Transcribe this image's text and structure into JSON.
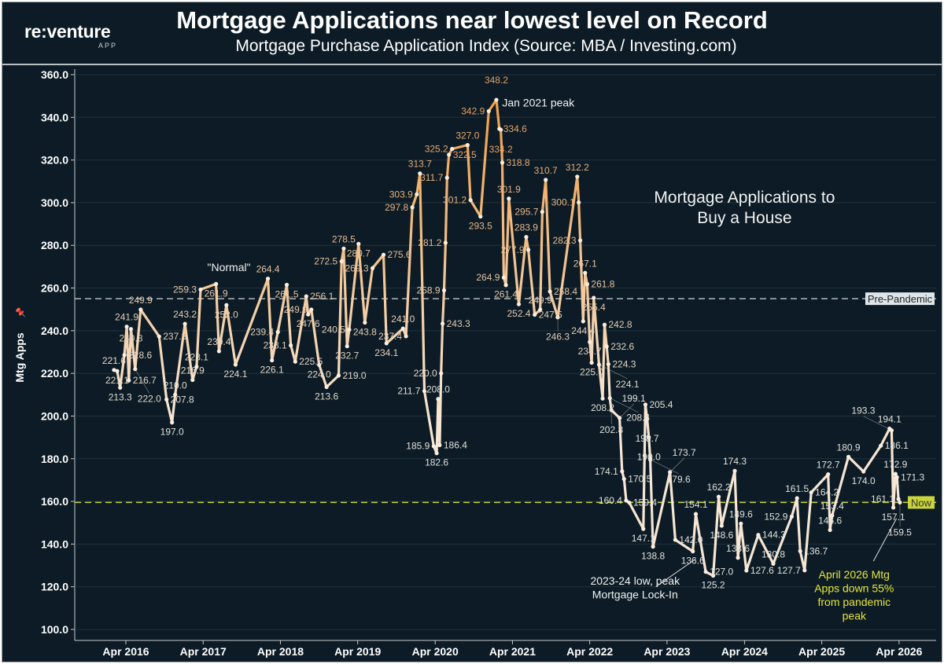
{
  "header": {
    "logo": "re:venture",
    "logo_sub": "APP",
    "title": "Mortgage Applications near lowest level on Record",
    "subtitle": "Mortgage Purchase Application Index (Source: MBA / Investing.com)"
  },
  "colors": {
    "background": "#0c1b25",
    "line_high": "#f0a14f",
    "line_low": "#f6e6d3",
    "now_line": "#c8d43a",
    "pre_pandemic_line": "#b0b8bc"
  },
  "chart_data": {
    "type": "line",
    "title": "Mortgage Applications near lowest level on Record",
    "subtitle": "Mortgage Purchase Application Index (Source: MBA / Investing.com)",
    "ylabel": "Mtg Apps",
    "ylabel_icon": "pin-icon",
    "ylim": [
      100,
      360
    ],
    "yticks": [
      "100.0",
      "120.0",
      "140.0",
      "160.0",
      "180.0",
      "200.0",
      "220.0",
      "240.0",
      "260.0",
      "280.0",
      "300.0",
      "320.0",
      "340.0",
      "360.0"
    ],
    "xticks": [
      {
        "date": "2016-04-01",
        "label": "Apr 2016"
      },
      {
        "date": "2017-04-01",
        "label": "Apr 2017"
      },
      {
        "date": "2018-04-01",
        "label": "Apr 2018"
      },
      {
        "date": "2019-04-01",
        "label": "Apr 2019"
      },
      {
        "date": "2020-04-01",
        "label": "Apr 2020"
      },
      {
        "date": "2021-04-01",
        "label": "Apr 2021"
      },
      {
        "date": "2022-04-01",
        "label": "Apr 2022"
      },
      {
        "date": "2023-04-01",
        "label": "Apr 2023"
      },
      {
        "date": "2024-04-01",
        "label": "Apr 2024"
      },
      {
        "date": "2025-04-01",
        "label": "Apr 2025"
      },
      {
        "date": "2026-04-01",
        "label": "Apr 2026"
      }
    ],
    "grid": true,
    "reference_lines": [
      {
        "label": "Pre-Pandemic",
        "value": 255,
        "style": "dashed"
      },
      {
        "label": "Now",
        "value": 159.5,
        "style": "dashed"
      }
    ],
    "annotations": [
      {
        "text": "\"Normal\"",
        "date": "2017-08-01",
        "value": 268
      },
      {
        "text": "Jan 2021 peak",
        "date": "2021-08-01",
        "value": 345
      },
      {
        "text": "Mortgage Applications to",
        "date": "2024-04-01",
        "value": 300
      },
      {
        "text": "Buy a House",
        "date": "2024-04-01",
        "value": 292
      },
      {
        "text": "2023-24 low, peak",
        "date": "2022-11-01",
        "value": 121
      },
      {
        "text": "Mortgage Lock-In",
        "date": "2022-11-01",
        "value": 115
      },
      {
        "text": "April 2026 Mtg",
        "date": "2025-09-01",
        "value": 124
      },
      {
        "text": "Apps down 55%",
        "date": "2025-09-01",
        "value": 118
      },
      {
        "text": "from pandemic",
        "date": "2025-09-01",
        "value": 112
      },
      {
        "text": "peak",
        "date": "2025-09-01",
        "value": 106
      }
    ],
    "series": [
      {
        "points": [
          [
            "2016-02-05",
            221.6
          ],
          [
            "2016-02-20",
            221.1
          ],
          [
            "2016-03-05",
            213.3
          ],
          [
            "2016-03-25",
            228.6
          ],
          [
            "2016-04-05",
            241.9
          ],
          [
            "2016-04-15",
            216.7
          ],
          [
            "2016-04-25",
            240.8
          ],
          [
            "2016-05-15",
            222.0
          ],
          [
            "2016-06-10",
            249.9
          ],
          [
            "2016-09-05",
            237.3
          ],
          [
            "2016-10-10",
            207.8
          ],
          [
            "2016-11-05",
            197.0
          ],
          [
            "2016-11-20",
            210.0
          ],
          [
            "2017-01-05",
            243.2
          ],
          [
            "2017-02-10",
            216.9
          ],
          [
            "2017-03-01",
            223.1
          ],
          [
            "2017-03-20",
            259.3
          ],
          [
            "2017-06-01",
            261.9
          ],
          [
            "2017-06-15",
            230.4
          ],
          [
            "2017-07-20",
            252.0
          ],
          [
            "2017-09-01",
            224.1
          ],
          [
            "2018-02-01",
            264.4
          ],
          [
            "2018-02-20",
            226.1
          ],
          [
            "2018-03-20",
            239.4
          ],
          [
            "2018-05-01",
            261.5
          ],
          [
            "2018-05-20",
            233.1
          ],
          [
            "2018-06-10",
            225.5
          ],
          [
            "2018-08-01",
            256.1
          ],
          [
            "2018-08-10",
            247.6
          ],
          [
            "2018-08-25",
            249.9
          ],
          [
            "2018-10-01",
            224.0
          ],
          [
            "2018-11-05",
            213.6
          ],
          [
            "2019-01-01",
            219.0
          ],
          [
            "2019-01-15",
            272.5
          ],
          [
            "2019-01-25",
            278.5
          ],
          [
            "2019-02-10",
            232.7
          ],
          [
            "2019-02-20",
            240.5
          ],
          [
            "2019-04-05",
            280.7
          ],
          [
            "2019-05-05",
            243.8
          ],
          [
            "2019-06-10",
            269.3
          ],
          [
            "2019-08-01",
            275.6
          ],
          [
            "2019-08-15",
            234.1
          ],
          [
            "2019-11-01",
            241.0
          ],
          [
            "2019-11-15",
            237.4
          ],
          [
            "2019-12-15",
            297.8
          ],
          [
            "2020-01-05",
            303.9
          ],
          [
            "2020-01-20",
            313.7
          ],
          [
            "2020-02-10",
            211.7
          ],
          [
            "2020-03-25",
            185.9
          ],
          [
            "2020-04-08",
            182.6
          ],
          [
            "2020-04-15",
            208.0
          ],
          [
            "2020-04-22",
            186.4
          ],
          [
            "2020-04-29",
            220.0
          ],
          [
            "2020-05-06",
            243.3
          ],
          [
            "2020-05-13",
            258.9
          ],
          [
            "2020-05-20",
            281.2
          ],
          [
            "2020-05-27",
            311.7
          ],
          [
            "2020-06-05",
            322.5
          ],
          [
            "2020-06-20",
            325.2
          ],
          [
            "2020-09-01",
            327.0
          ],
          [
            "2020-09-15",
            301.2
          ],
          [
            "2020-11-01",
            293.5
          ],
          [
            "2020-12-10",
            342.9
          ],
          [
            "2021-01-15",
            348.2
          ],
          [
            "2021-01-29",
            334.6
          ],
          [
            "2021-02-05",
            334.2
          ],
          [
            "2021-02-12",
            318.8
          ],
          [
            "2021-02-19",
            264.9
          ],
          [
            "2021-03-01",
            261.4
          ],
          [
            "2021-03-15",
            301.9
          ],
          [
            "2021-05-01",
            252.4
          ],
          [
            "2021-06-05",
            283.9
          ],
          [
            "2021-06-15",
            277.9
          ],
          [
            "2021-07-15",
            247.5
          ],
          [
            "2021-08-10",
            249.9
          ],
          [
            "2021-08-20",
            295.7
          ],
          [
            "2021-09-05",
            310.7
          ],
          [
            "2021-09-25",
            258.4
          ],
          [
            "2021-11-01",
            246.3
          ],
          [
            "2022-02-01",
            312.2
          ],
          [
            "2022-02-08",
            300.1
          ],
          [
            "2022-02-15",
            282.3
          ],
          [
            "2022-03-01",
            244.4
          ],
          [
            "2022-03-10",
            267.1
          ],
          [
            "2022-03-20",
            261.8
          ],
          [
            "2022-04-01",
            234.7
          ],
          [
            "2022-04-10",
            225.0
          ],
          [
            "2022-04-20",
            255.4
          ],
          [
            "2022-05-15",
            224.1
          ],
          [
            "2022-06-01",
            208.2
          ],
          [
            "2022-06-10",
            242.8
          ],
          [
            "2022-06-20",
            232.6
          ],
          [
            "2022-06-28",
            224.3
          ],
          [
            "2022-07-05",
            208.4
          ],
          [
            "2022-07-12",
            202.8
          ],
          [
            "2022-08-20",
            199.1
          ],
          [
            "2022-09-01",
            174.1
          ],
          [
            "2022-09-10",
            170.5
          ],
          [
            "2022-09-20",
            160.4
          ],
          [
            "2022-10-05",
            159.4
          ],
          [
            "2022-12-10",
            147.1
          ],
          [
            "2022-12-20",
            205.4
          ],
          [
            "2022-12-28",
            198.7
          ],
          [
            "2023-01-05",
            190.0
          ],
          [
            "2023-01-12",
            179.6
          ],
          [
            "2023-01-25",
            138.8
          ],
          [
            "2023-04-15",
            173.7
          ],
          [
            "2023-05-10",
            142.0
          ],
          [
            "2023-08-01",
            136.6
          ],
          [
            "2023-08-15",
            154.1
          ],
          [
            "2023-10-01",
            127.0
          ],
          [
            "2023-11-05",
            125.2
          ],
          [
            "2023-12-01",
            162.2
          ],
          [
            "2023-12-15",
            148.6
          ],
          [
            "2024-02-15",
            174.3
          ],
          [
            "2024-03-01",
            133.6
          ],
          [
            "2024-03-15",
            149.6
          ],
          [
            "2024-04-10",
            127.6
          ],
          [
            "2024-06-05",
            144.3
          ],
          [
            "2024-08-15",
            130.8
          ],
          [
            "2024-11-10",
            152.9
          ],
          [
            "2024-12-05",
            161.5
          ],
          [
            "2024-12-20",
            136.7
          ],
          [
            "2025-01-10",
            127.7
          ],
          [
            "2025-02-10",
            164.2
          ],
          [
            "2025-05-01",
            172.7
          ],
          [
            "2025-05-10",
            146.6
          ],
          [
            "2025-05-20",
            153.4
          ],
          [
            "2025-08-05",
            180.9
          ],
          [
            "2025-10-15",
            174.0
          ],
          [
            "2026-01-05",
            186.1
          ],
          [
            "2026-02-15",
            194.1
          ],
          [
            "2026-02-25",
            193.3
          ],
          [
            "2026-03-05",
            157.1
          ],
          [
            "2026-03-15",
            172.9
          ],
          [
            "2026-03-22",
            171.3
          ],
          [
            "2026-03-29",
            161.1
          ],
          [
            "2026-04-05",
            159.5
          ]
        ]
      }
    ]
  }
}
